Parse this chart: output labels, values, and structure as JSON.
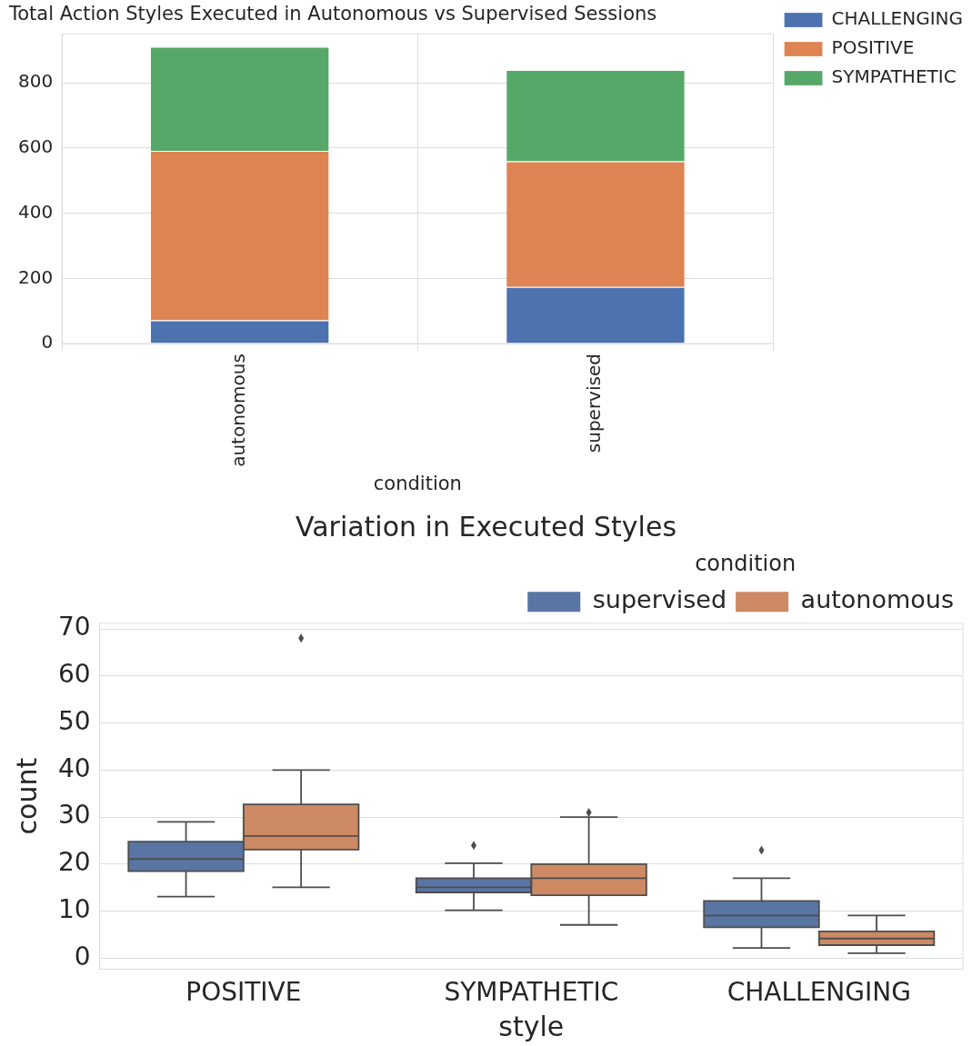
{
  "chart_data": [
    {
      "type": "bar",
      "stacked": true,
      "title": "Total Action Styles Executed in Autonomous vs Supervised Sessions",
      "xlabel": "condition",
      "categories": [
        "autonomous",
        "supervised"
      ],
      "series": [
        {
          "name": "CHALLENGING",
          "color": "#4c72b0",
          "values": [
            71,
            174
          ]
        },
        {
          "name": "POSITIVE",
          "color": "#dd8452",
          "values": [
            520,
            385
          ]
        },
        {
          "name": "SYMPATHETIC",
          "color": "#55a868",
          "values": [
            319,
            280
          ]
        }
      ],
      "ylim": [
        0,
        950
      ],
      "yticks": [
        0,
        200,
        400,
        600,
        800
      ],
      "grid": true,
      "legend": "top right"
    },
    {
      "type": "box",
      "title": "Variation in Executed Styles",
      "xlabel": "style",
      "ylabel": "count",
      "legend_title": "condition",
      "categories": [
        "POSITIVE",
        "SYMPATHETIC",
        "CHALLENGING"
      ],
      "series": [
        {
          "name": "supervised",
          "color": "#5975a4",
          "boxes": [
            {
              "low": 13.1,
              "q1": 18.5,
              "median": 21.1,
              "q3": 24.8,
              "high": 29
            },
            {
              "low": 10.2,
              "q1": 14,
              "median": 15.1,
              "q3": 17,
              "high": 20.2,
              "outliers": [
                24
              ]
            },
            {
              "low": 2.2,
              "q1": 6.6,
              "median": 9.1,
              "q3": 12.2,
              "high": 17,
              "outliers": [
                23
              ]
            }
          ]
        },
        {
          "name": "autonomous",
          "color": "#cc8963",
          "boxes": [
            {
              "low": 15.1,
              "q1": 23.1,
              "median": 26,
              "q3": 32.7,
              "high": 40,
              "outliers": [
                68
              ]
            },
            {
              "low": 7.1,
              "q1": 13.4,
              "median": 17,
              "q3": 20,
              "high": 30,
              "outliers": [
                31
              ]
            },
            {
              "low": 1.1,
              "q1": 2.8,
              "median": 4.2,
              "q3": 5.7,
              "high": 9.1
            }
          ]
        }
      ],
      "ylim": [
        -2.3,
        71.2
      ],
      "yticks": [
        0,
        10,
        20,
        30,
        40,
        50,
        60,
        70
      ],
      "grid": "y",
      "legend": "top right"
    }
  ]
}
